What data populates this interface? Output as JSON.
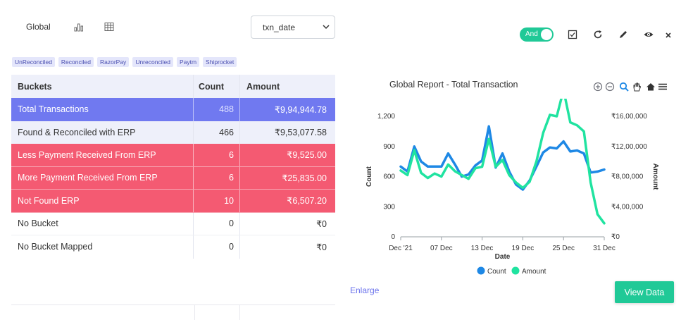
{
  "tabs": {
    "global_label": "Global",
    "bar_chart_icon": "bar-chart-icon",
    "table_icon": "table-grid-icon"
  },
  "date_select": {
    "value": "txn_date"
  },
  "tags": [
    "UnReconciled",
    "Reconciled",
    "RazorPay",
    "Unreconciled",
    "Paytm",
    "Shiprocket"
  ],
  "table": {
    "headers": [
      "Buckets",
      "Count",
      "Amount"
    ],
    "rows": [
      {
        "bucket": "Total  Transactions",
        "count": "488",
        "amount": "₹9,94,944.78"
      },
      {
        "bucket": "Found & Reconciled with ERP",
        "count": "466",
        "amount": "₹9,53,077.58"
      },
      {
        "bucket": "Less Payment Received From ERP",
        "count": "6",
        "amount": "₹9,525.00"
      },
      {
        "bucket": "More Payment Received From ERP",
        "count": "6",
        "amount": "₹25,835.00"
      },
      {
        "bucket": "Not Found ERP",
        "count": "10",
        "amount": "₹6,507.20"
      },
      {
        "bucket": "No Bucket",
        "count": "0",
        "amount": "₹0"
      },
      {
        "bucket": "No Bucket Mapped",
        "count": "0",
        "amount": "₹0"
      }
    ]
  },
  "toolbar": {
    "toggle_label": "And",
    "icons": [
      "checkbox-icon",
      "refresh-icon",
      "pencil-icon",
      "eye-icon",
      "close-icon"
    ]
  },
  "chart_header": {
    "title": "Global Report - Total Transaction",
    "tools": [
      "zoom-in-icon",
      "zoom-out-icon",
      "zoom-select-icon",
      "pan-hand-icon",
      "home-icon",
      "menu-icon"
    ]
  },
  "chart_data": {
    "type": "line",
    "title": "Global Report - Total Transaction",
    "xlabel": "Date",
    "ylabel": "Count",
    "y2label": "Amount",
    "x_ticks": [
      "Dec '21",
      "07 Dec",
      "13 Dec",
      "19 Dec",
      "25 Dec",
      "31 Dec"
    ],
    "y_ticks": [
      "0",
      "300",
      "600",
      "900",
      "1,200"
    ],
    "y2_ticks": [
      "₹0",
      "₹4,00,000",
      "₹8,00,000",
      "₹12,00,000",
      "₹16,00,000"
    ],
    "ylim": [
      0,
      1200
    ],
    "y2lim": [
      0,
      1600000
    ],
    "x_days": [
      1,
      2,
      3,
      4,
      5,
      6,
      7,
      8,
      9,
      10,
      11,
      12,
      13,
      14,
      15,
      16,
      17,
      18,
      19,
      20,
      21,
      22,
      23,
      24,
      25,
      26,
      27,
      28,
      29,
      30,
      31
    ],
    "series": [
      {
        "name": "Count",
        "axis": "left",
        "color": "#1e88e5",
        "values": [
          700,
          650,
          900,
          750,
          700,
          700,
          700,
          830,
          720,
          600,
          620,
          710,
          760,
          1100,
          690,
          830,
          650,
          520,
          470,
          560,
          700,
          840,
          890,
          880,
          950,
          850,
          860,
          830,
          640,
          650,
          670
        ]
      },
      {
        "name": "Amount",
        "axis": "right",
        "color": "#20e3a0",
        "values": [
          880000,
          820000,
          1150000,
          850000,
          780000,
          840000,
          800000,
          960000,
          870000,
          820000,
          770000,
          910000,
          930000,
          1300000,
          930000,
          1020000,
          820000,
          720000,
          650000,
          730000,
          1000000,
          1380000,
          1620000,
          1600000,
          1950000,
          1520000,
          1480000,
          1400000,
          720000,
          300000,
          180000
        ]
      }
    ],
    "legend_position": "bottom"
  },
  "enlarge_label": "Enlarge",
  "view_button_label": "View Data"
}
